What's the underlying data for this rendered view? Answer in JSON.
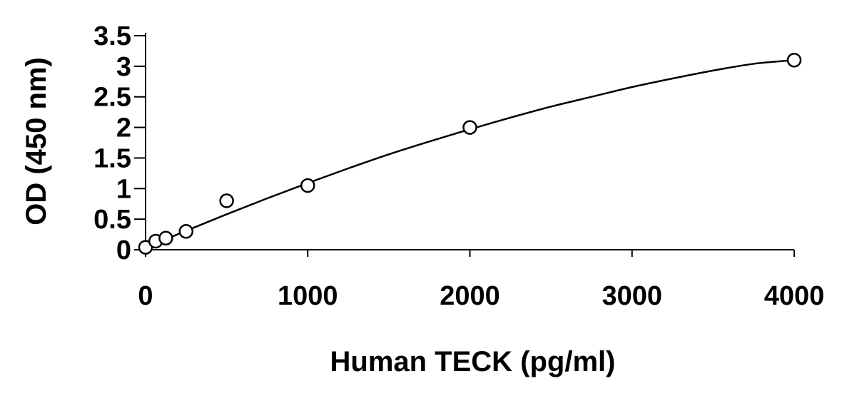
{
  "chart_data": {
    "type": "scatter",
    "title": "",
    "xlabel": "Human TECK (pg/ml)",
    "ylabel": "OD (450 nm)",
    "xlim": [
      0,
      4000
    ],
    "ylim": [
      0,
      3.5
    ],
    "x_ticks": [
      "0",
      "1000",
      "2000",
      "3000",
      "4000"
    ],
    "y_ticks": [
      "0",
      "0.5",
      "1",
      "1.5",
      "2",
      "2.5",
      "3",
      "3.5"
    ],
    "grid": false,
    "legend": "none",
    "series": [
      {
        "marker": "open-circle",
        "x": [
          0,
          62.5,
          125,
          250,
          500,
          1000,
          2000,
          4000
        ],
        "y": [
          0.04,
          0.14,
          0.19,
          0.3,
          0.8,
          1.05,
          2.0,
          3.1
        ]
      }
    ],
    "fit_curve": {
      "x": [
        0,
        250,
        500,
        750,
        1000,
        1250,
        1500,
        1750,
        2000,
        2250,
        2500,
        2750,
        3000,
        3250,
        3500,
        3750,
        4000
      ],
      "y": [
        0.03,
        0.31,
        0.58,
        0.84,
        1.09,
        1.33,
        1.56,
        1.77,
        1.97,
        2.16,
        2.34,
        2.5,
        2.66,
        2.8,
        2.93,
        3.04,
        3.1
      ]
    }
  }
}
